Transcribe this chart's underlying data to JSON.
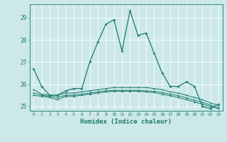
{
  "xlabel": "Humidex (Indice chaleur)",
  "ylabel": "",
  "background_color": "#cce8e8",
  "grid_color": "#e8e8e8",
  "line_color": "#1a7a6e",
  "xlim": [
    -0.5,
    23.5
  ],
  "ylim": [
    24.8,
    29.6
  ],
  "yticks": [
    25,
    26,
    27,
    28,
    29
  ],
  "xticks": [
    0,
    1,
    2,
    3,
    4,
    5,
    6,
    7,
    8,
    9,
    10,
    11,
    12,
    13,
    14,
    15,
    16,
    17,
    18,
    19,
    20,
    21,
    22,
    23
  ],
  "series1": [
    26.7,
    25.9,
    25.5,
    25.5,
    25.7,
    25.8,
    25.8,
    27.0,
    27.9,
    28.7,
    28.9,
    27.5,
    29.3,
    28.2,
    28.3,
    27.4,
    26.5,
    25.9,
    25.9,
    26.1,
    25.9,
    25.0,
    24.9,
    25.1
  ],
  "series2": [
    25.75,
    25.55,
    25.5,
    25.5,
    25.6,
    25.6,
    25.65,
    25.7,
    25.75,
    25.8,
    25.85,
    25.85,
    25.85,
    25.85,
    25.85,
    25.8,
    25.75,
    25.65,
    25.6,
    25.5,
    25.4,
    25.3,
    25.15,
    25.05
  ],
  "series3": [
    25.6,
    25.5,
    25.45,
    25.4,
    25.5,
    25.5,
    25.55,
    25.6,
    25.65,
    25.7,
    25.72,
    25.72,
    25.72,
    25.72,
    25.7,
    25.68,
    25.62,
    25.55,
    25.48,
    25.38,
    25.28,
    25.18,
    25.05,
    24.95
  ],
  "series4": [
    25.5,
    25.45,
    25.4,
    25.3,
    25.45,
    25.45,
    25.5,
    25.55,
    25.6,
    25.65,
    25.68,
    25.68,
    25.68,
    25.68,
    25.65,
    25.62,
    25.55,
    25.48,
    25.4,
    25.3,
    25.2,
    25.1,
    24.98,
    24.9
  ]
}
